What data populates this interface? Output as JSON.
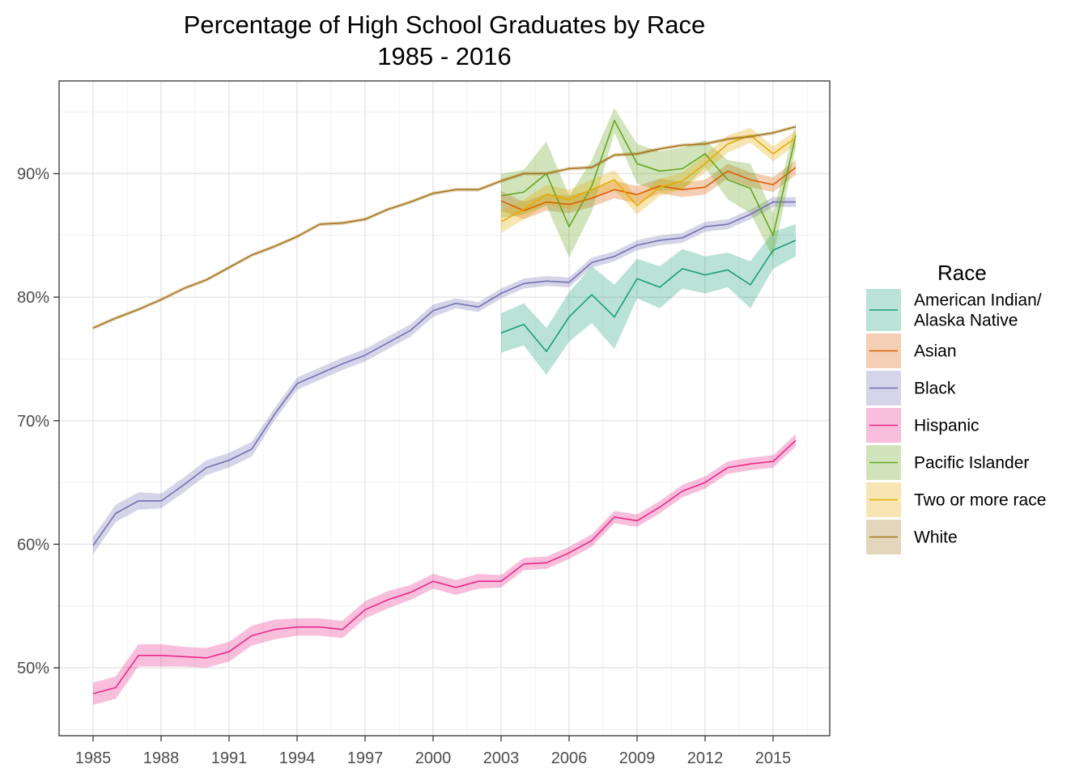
{
  "chart_data": {
    "type": "line",
    "title": "Percentage of High School Graduates by Race",
    "subtitle": "1985 - 2016",
    "xlabel": "",
    "ylabel": "",
    "xlim": [
      1983.5,
      2017.5
    ],
    "ylim": [
      44.5,
      97.5
    ],
    "x_ticks": [
      1985,
      1988,
      1991,
      1994,
      1997,
      2000,
      2003,
      2006,
      2009,
      2012,
      2015
    ],
    "y_ticks": [
      50,
      60,
      70,
      80,
      90
    ],
    "y_tick_labels": [
      "50%",
      "60%",
      "70%",
      "80%",
      "90%"
    ],
    "grid": true,
    "legend": {
      "title": "Race",
      "position": "right"
    },
    "series": [
      {
        "name": "American Indian/\nAlaska Native",
        "color": "#1b9e77",
        "x": [
          2003,
          2004,
          2005,
          2006,
          2007,
          2008,
          2009,
          2010,
          2011,
          2012,
          2013,
          2014,
          2015,
          2016
        ],
        "values": [
          77.1,
          77.8,
          75.6,
          78.4,
          80.2,
          78.4,
          81.5,
          80.8,
          82.3,
          81.8,
          82.2,
          81.0,
          83.8,
          84.6
        ],
        "band": [
          1.6,
          1.7,
          1.9,
          2.0,
          2.3,
          2.6,
          1.6,
          1.7,
          1.6,
          1.5,
          1.4,
          1.9,
          1.5,
          1.3
        ]
      },
      {
        "name": "Asian",
        "color": "#d95f02",
        "x": [
          2003,
          2004,
          2005,
          2006,
          2007,
          2008,
          2009,
          2010,
          2011,
          2012,
          2013,
          2014,
          2015,
          2016
        ],
        "values": [
          87.8,
          87.0,
          87.7,
          87.5,
          88.0,
          88.7,
          88.3,
          89.0,
          88.7,
          88.9,
          90.2,
          89.5,
          89.1,
          90.5
        ],
        "band": [
          0.8,
          0.7,
          0.7,
          0.7,
          0.7,
          0.7,
          0.7,
          0.6,
          0.6,
          0.6,
          0.6,
          0.6,
          0.6,
          0.6
        ]
      },
      {
        "name": "Black",
        "color": "#7570b3",
        "x": [
          1985,
          1986,
          1987,
          1988,
          1989,
          1990,
          1991,
          1992,
          1993,
          1994,
          1995,
          1996,
          1997,
          1998,
          1999,
          2000,
          2001,
          2002,
          2003,
          2004,
          2005,
          2006,
          2007,
          2008,
          2009,
          2010,
          2011,
          2012,
          2013,
          2014,
          2015,
          2016
        ],
        "values": [
          59.9,
          62.5,
          63.5,
          63.5,
          64.8,
          66.2,
          66.8,
          67.7,
          70.5,
          73.0,
          73.8,
          74.6,
          75.3,
          76.3,
          77.3,
          78.9,
          79.5,
          79.2,
          80.3,
          81.1,
          81.3,
          81.2,
          82.8,
          83.3,
          84.2,
          84.6,
          84.8,
          85.7,
          85.9,
          86.7,
          87.7,
          87.7
        ],
        "band": [
          0.7,
          0.7,
          0.7,
          0.6,
          0.6,
          0.6,
          0.6,
          0.6,
          0.5,
          0.5,
          0.5,
          0.5,
          0.5,
          0.5,
          0.5,
          0.5,
          0.4,
          0.4,
          0.4,
          0.4,
          0.4,
          0.4,
          0.4,
          0.4,
          0.4,
          0.4,
          0.4,
          0.4,
          0.4,
          0.4,
          0.4,
          0.4
        ]
      },
      {
        "name": "Hispanic",
        "color": "#e7298a",
        "x": [
          1985,
          1986,
          1987,
          1988,
          1989,
          1990,
          1991,
          1992,
          1993,
          1994,
          1995,
          1996,
          1997,
          1998,
          1999,
          2000,
          2001,
          2002,
          2003,
          2004,
          2005,
          2006,
          2007,
          2008,
          2009,
          2010,
          2011,
          2012,
          2013,
          2014,
          2015,
          2016
        ],
        "values": [
          47.9,
          48.4,
          51.0,
          51.0,
          50.9,
          50.8,
          51.3,
          52.6,
          53.1,
          53.3,
          53.3,
          53.1,
          54.7,
          55.5,
          56.1,
          57.0,
          56.5,
          57.0,
          57.0,
          58.4,
          58.5,
          59.3,
          60.3,
          62.2,
          61.9,
          63.0,
          64.3,
          65.0,
          66.2,
          66.5,
          66.7,
          68.4
        ],
        "band": [
          0.9,
          0.9,
          0.9,
          0.9,
          0.8,
          0.8,
          0.8,
          0.8,
          0.8,
          0.7,
          0.7,
          0.7,
          0.7,
          0.7,
          0.6,
          0.6,
          0.6,
          0.6,
          0.5,
          0.5,
          0.5,
          0.5,
          0.5,
          0.5,
          0.5,
          0.5,
          0.5,
          0.5,
          0.5,
          0.5,
          0.5,
          0.5
        ]
      },
      {
        "name": "Pacific Islander",
        "color": "#66a61e",
        "x": [
          2003,
          2004,
          2005,
          2006,
          2007,
          2008,
          2009,
          2010,
          2011,
          2012,
          2013,
          2014,
          2015,
          2016
        ],
        "values": [
          88.2,
          88.5,
          90.0,
          85.7,
          89.0,
          94.3,
          90.8,
          90.2,
          90.4,
          91.6,
          89.5,
          88.8,
          85.0,
          93.1
        ],
        "band": [
          1.8,
          1.8,
          2.6,
          2.5,
          2.1,
          1.0,
          1.6,
          1.6,
          1.7,
          1.1,
          1.6,
          2.0,
          1.8,
          1.0
        ]
      },
      {
        "name": "Two or more race",
        "color": "#e6ab02",
        "x": [
          2003,
          2004,
          2005,
          2006,
          2007,
          2008,
          2009,
          2010,
          2011,
          2012,
          2013,
          2014,
          2015,
          2016
        ],
        "values": [
          86.1,
          87.1,
          88.3,
          87.9,
          88.7,
          89.5,
          87.4,
          88.9,
          89.4,
          90.8,
          92.4,
          93.1,
          91.6,
          92.9
        ],
        "band": [
          0.9,
          0.8,
          0.8,
          0.8,
          0.8,
          0.8,
          0.7,
          0.7,
          0.7,
          0.7,
          0.7,
          0.6,
          0.6,
          0.6
        ]
      },
      {
        "name": "White",
        "color": "#a6761d",
        "x": [
          1985,
          1986,
          1987,
          1988,
          1989,
          1990,
          1991,
          1992,
          1993,
          1994,
          1995,
          1996,
          1997,
          1998,
          1999,
          2000,
          2001,
          2002,
          2003,
          2004,
          2005,
          2006,
          2007,
          2008,
          2009,
          2010,
          2011,
          2012,
          2013,
          2014,
          2015,
          2016
        ],
        "values": [
          77.5,
          78.3,
          79.0,
          79.8,
          80.7,
          81.4,
          82.4,
          83.4,
          84.1,
          84.9,
          85.9,
          86.0,
          86.3,
          87.1,
          87.7,
          88.4,
          88.7,
          88.7,
          89.4,
          90.0,
          90.0,
          90.4,
          90.5,
          91.5,
          91.6,
          92.0,
          92.3,
          92.4,
          92.8,
          93.0,
          93.3,
          93.8
        ],
        "band": [
          0.15,
          0.15,
          0.15,
          0.15,
          0.15,
          0.15,
          0.15,
          0.15,
          0.15,
          0.15,
          0.15,
          0.15,
          0.15,
          0.15,
          0.15,
          0.15,
          0.15,
          0.15,
          0.15,
          0.15,
          0.15,
          0.15,
          0.15,
          0.15,
          0.15,
          0.15,
          0.15,
          0.15,
          0.15,
          0.15,
          0.15,
          0.15
        ]
      }
    ]
  }
}
